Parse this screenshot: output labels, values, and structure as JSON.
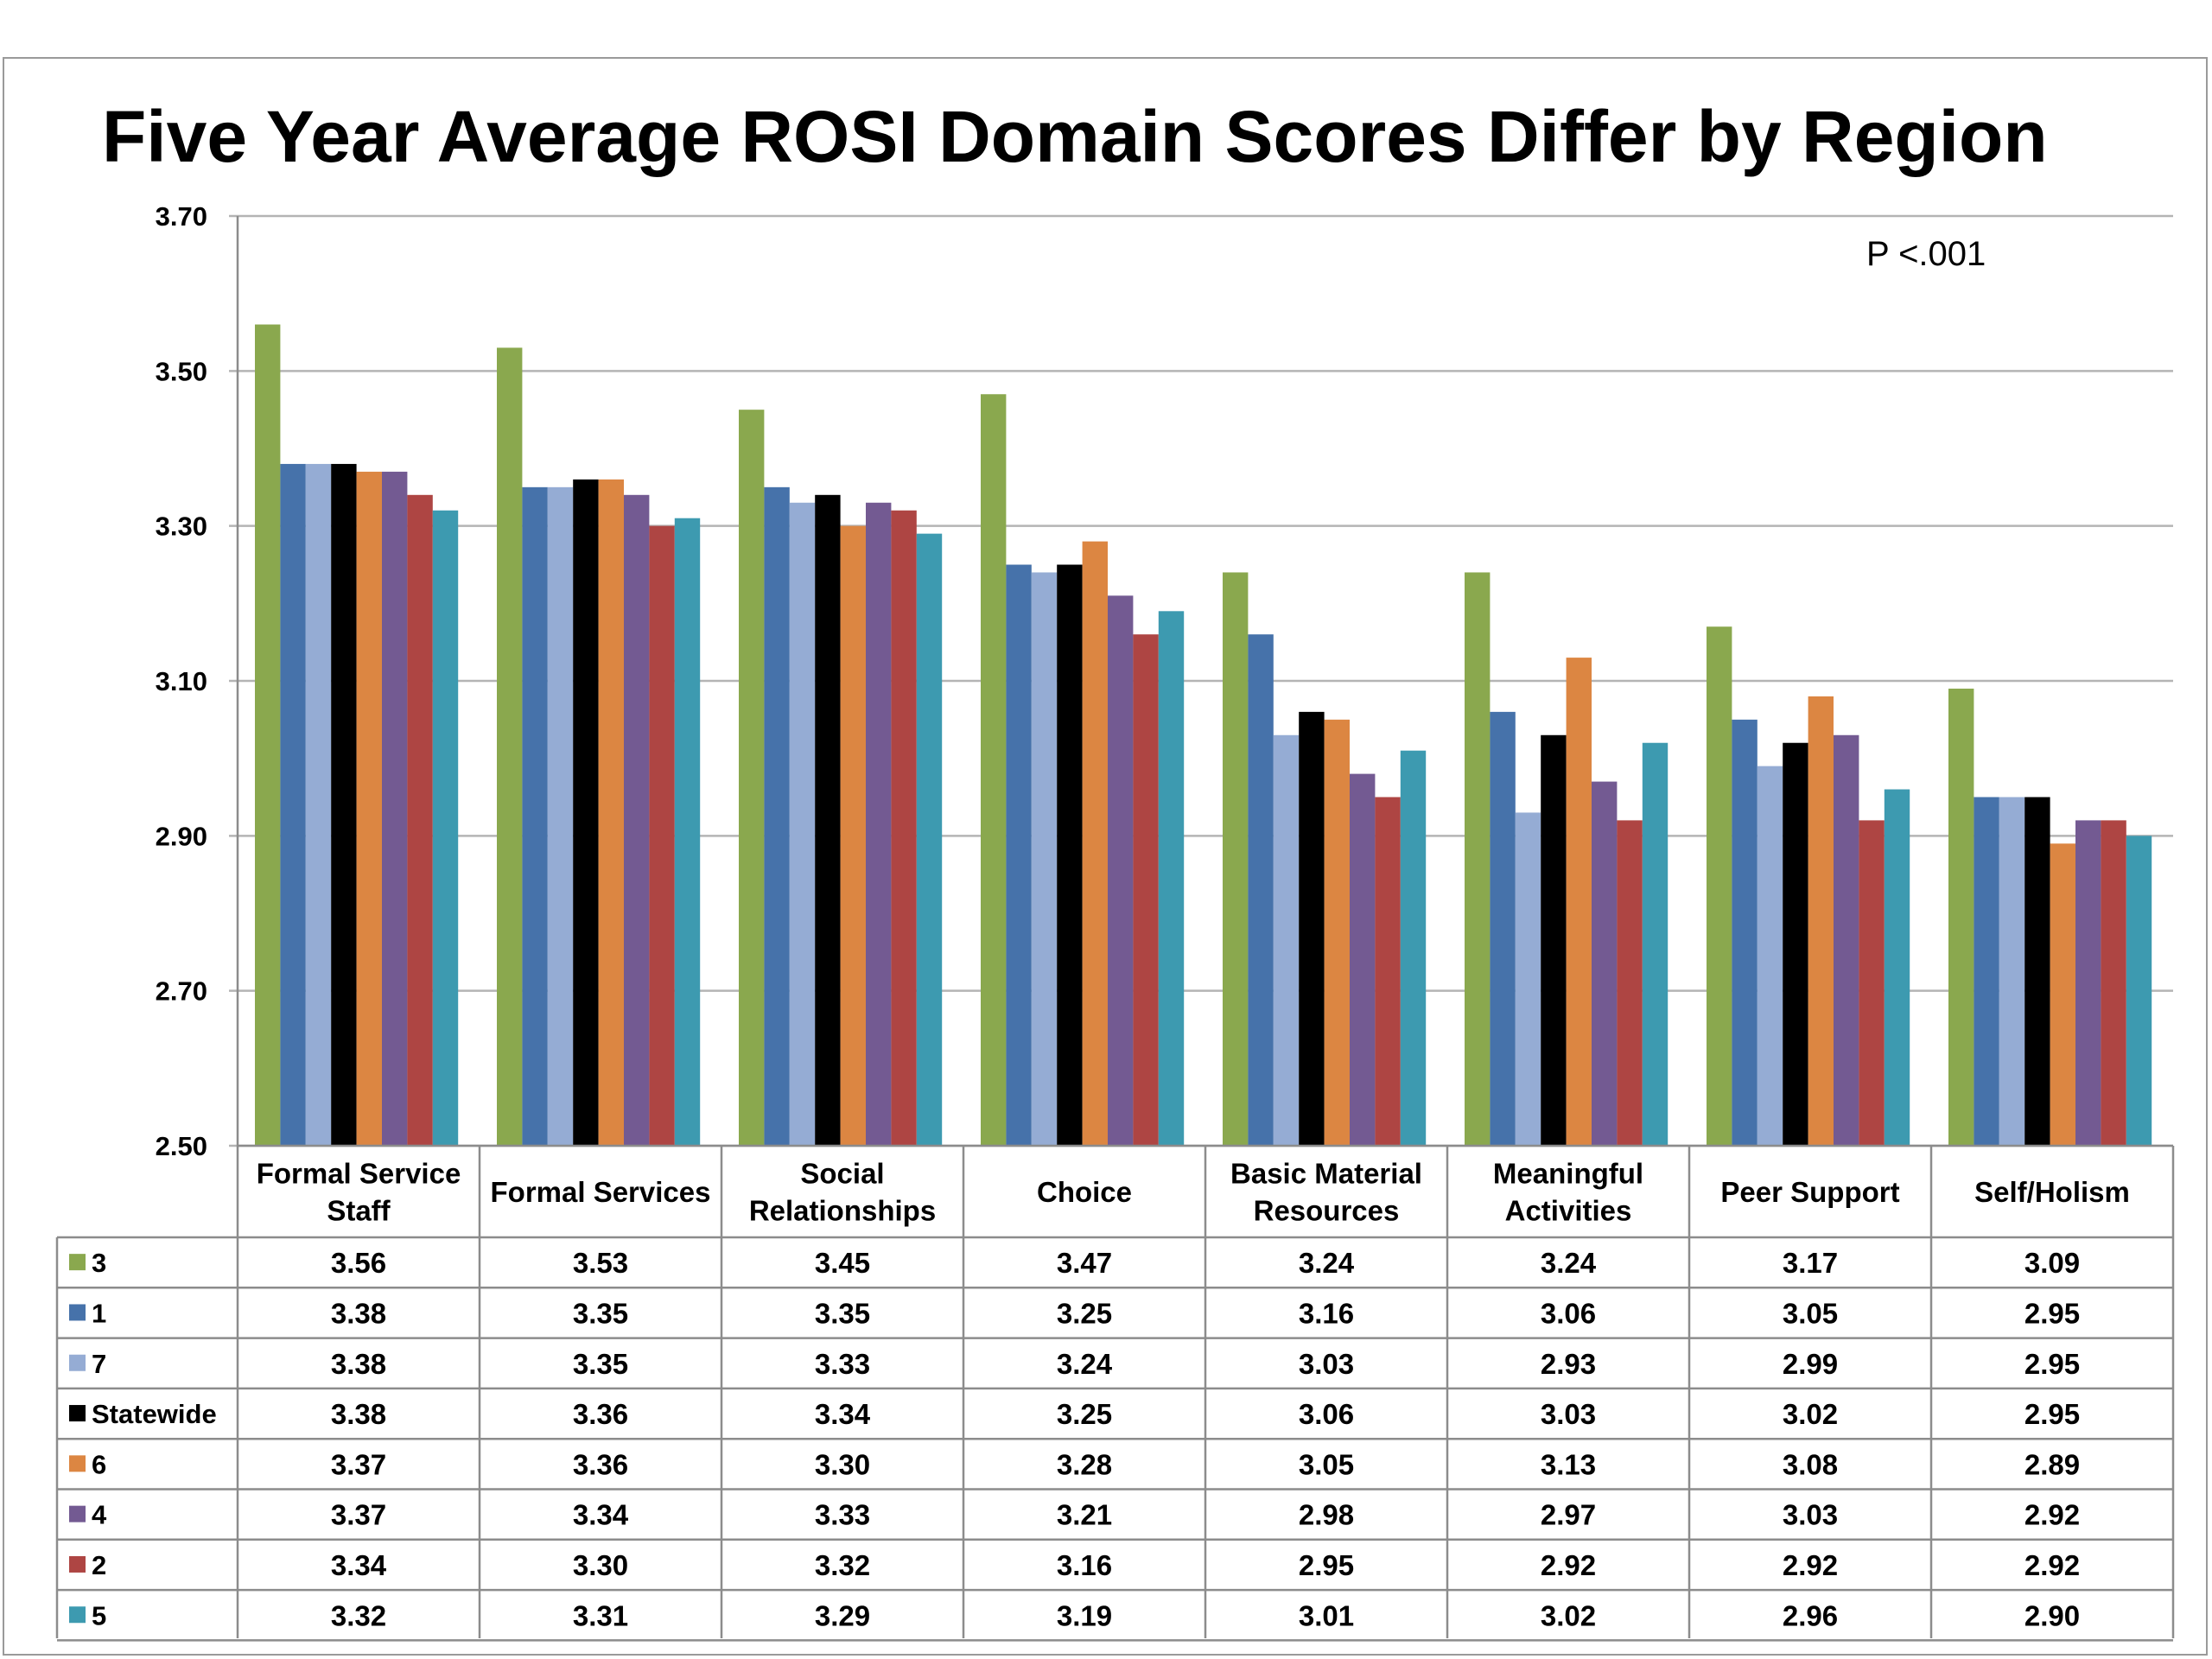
{
  "chart_data": {
    "type": "bar",
    "title": "Five Year Average ROSI Domain Scores Differ by Region",
    "annotation": "P <.001",
    "xlabel": "",
    "ylabel": "",
    "ylim": [
      2.5,
      3.7
    ],
    "yticks": [
      "3.70",
      "3.50",
      "3.30",
      "3.10",
      "2.90",
      "2.70",
      "2.50"
    ],
    "grid": true,
    "legend": "table-rows",
    "categories": [
      [
        "Formal Service",
        "Staff"
      ],
      [
        "Formal Services"
      ],
      [
        "Social",
        "Relationships"
      ],
      [
        "Choice"
      ],
      [
        "Basic Material",
        "Resources"
      ],
      [
        "Meaningful",
        "Activities"
      ],
      [
        "Peer Support"
      ],
      [
        "Self/Holism"
      ]
    ],
    "series": [
      {
        "name": "3",
        "color": "#8aa84e",
        "values": [
          3.56,
          3.53,
          3.45,
          3.47,
          3.24,
          3.24,
          3.17,
          3.09
        ],
        "labels": [
          "3.56",
          "3.53",
          "3.45",
          "3.47",
          "3.24",
          "3.24",
          "3.17",
          "3.09"
        ]
      },
      {
        "name": "1",
        "color": "#4672aa",
        "values": [
          3.38,
          3.35,
          3.35,
          3.25,
          3.16,
          3.06,
          3.05,
          2.95
        ],
        "labels": [
          "3.38",
          "3.35",
          "3.35",
          "3.25",
          "3.16",
          "3.06",
          "3.05",
          "2.95"
        ]
      },
      {
        "name": "7",
        "color": "#95acd4",
        "values": [
          3.38,
          3.35,
          3.33,
          3.24,
          3.03,
          2.93,
          2.99,
          2.95
        ],
        "labels": [
          "3.38",
          "3.35",
          "3.33",
          "3.24",
          "3.03",
          "2.93",
          "2.99",
          "2.95"
        ]
      },
      {
        "name": "Statewide",
        "color": "#000000",
        "values": [
          3.38,
          3.36,
          3.34,
          3.25,
          3.06,
          3.03,
          3.02,
          2.95
        ],
        "labels": [
          "3.38",
          "3.36",
          "3.34",
          "3.25",
          "3.06",
          "3.03",
          "3.02",
          "2.95"
        ]
      },
      {
        "name": "6",
        "color": "#dc8642",
        "values": [
          3.37,
          3.36,
          3.3,
          3.28,
          3.05,
          3.13,
          3.08,
          2.89
        ],
        "labels": [
          "3.37",
          "3.36",
          "3.30",
          "3.28",
          "3.05",
          "3.13",
          "3.08",
          "2.89"
        ]
      },
      {
        "name": "4",
        "color": "#735a92",
        "values": [
          3.37,
          3.34,
          3.33,
          3.21,
          2.98,
          2.97,
          3.03,
          2.92
        ],
        "labels": [
          "3.37",
          "3.34",
          "3.33",
          "3.21",
          "2.98",
          "2.97",
          "3.03",
          "2.92"
        ]
      },
      {
        "name": "2",
        "color": "#ae4543",
        "values": [
          3.34,
          3.3,
          3.32,
          3.16,
          2.95,
          2.92,
          2.92,
          2.92
        ],
        "labels": [
          "3.34",
          "3.30",
          "3.32",
          "3.16",
          "2.95",
          "2.92",
          "2.92",
          "2.92"
        ]
      },
      {
        "name": "5",
        "color": "#3d9ab0",
        "values": [
          3.32,
          3.31,
          3.29,
          3.19,
          3.01,
          3.02,
          2.96,
          2.9
        ],
        "labels": [
          "3.32",
          "3.31",
          "3.29",
          "3.19",
          "3.01",
          "3.02",
          "2.96",
          "2.90"
        ]
      }
    ]
  }
}
